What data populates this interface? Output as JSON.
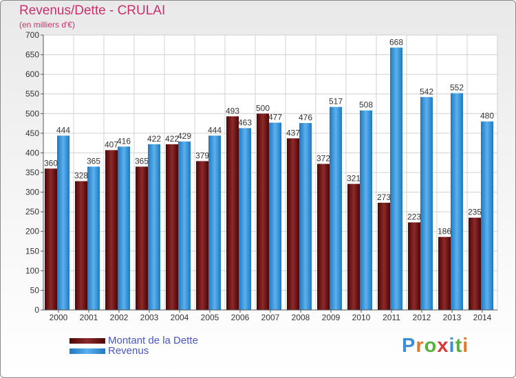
{
  "title": "Revenus/Dette - CRULAI",
  "subtitle": "(en milliers d'€)",
  "logo": {
    "text": "Proxiti",
    "colors": [
      "#3a8fd6",
      "#e07a28",
      "#58b13a",
      "#d63a3a",
      "#3a8fd6",
      "#58b13a",
      "#e07a28"
    ]
  },
  "colors": {
    "debt": "#7a1616",
    "revenue": "#3d9fe6",
    "title": "#c8306c",
    "legend_text": "#4a55c8"
  },
  "chart_data": {
    "type": "bar",
    "categories": [
      "2000",
      "2001",
      "2002",
      "2003",
      "2004",
      "2005",
      "2006",
      "2007",
      "2008",
      "2009",
      "2010",
      "2011",
      "2012",
      "2013",
      "2014"
    ],
    "series": [
      {
        "name": "Montant de la Dette",
        "values": [
          360,
          328,
          407,
          365,
          422,
          379,
          493,
          500,
          437,
          372,
          321,
          273,
          223,
          186,
          235
        ]
      },
      {
        "name": "Revenus",
        "values": [
          444,
          365,
          416,
          422,
          429,
          444,
          463,
          477,
          476,
          517,
          508,
          668,
          542,
          552,
          480
        ]
      }
    ],
    "yticks": [
      0,
      50,
      100,
      150,
      200,
      250,
      300,
      350,
      400,
      450,
      500,
      550,
      600,
      650,
      700
    ],
    "ylim": [
      0,
      700
    ],
    "grid": true,
    "legend": "bottom-left"
  }
}
